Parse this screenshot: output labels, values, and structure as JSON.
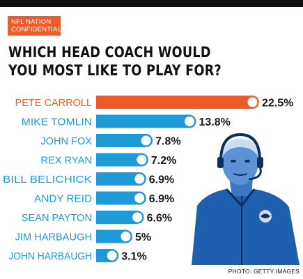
{
  "badge": {
    "line1": "NFL NATION",
    "line2": "CONFIDENTIAL"
  },
  "title": {
    "line1": "WHICH HEAD COACH WOULD",
    "line2": "YOU MOST LIKE TO PLAY FOR?"
  },
  "credit": "PHOTO: GETTY IMAGES",
  "colors": {
    "highlight": "#f05a28",
    "bar": "#1e9ad6",
    "label_highlight": "#f05a28",
    "label": "#1e9ad6",
    "value": "#1a1a1a",
    "photo": "#1f5fb0"
  },
  "chart_data": {
    "type": "bar",
    "orientation": "horizontal",
    "title": "WHICH HEAD COACH WOULD YOU MOST LIKE TO PLAY FOR?",
    "categories": [
      "PETE CARROLL",
      "MIKE TOMLIN",
      "JOHN FOX",
      "REX RYAN",
      "BILL BELICHICK",
      "ANDY REID",
      "SEAN PAYTON",
      "JIM HARBAUGH",
      "JOHN HARBAUGH"
    ],
    "values": [
      22.5,
      13.8,
      7.8,
      7.2,
      6.9,
      6.9,
      6.6,
      5,
      3.1
    ],
    "value_labels": [
      "22.5%",
      "13.8%",
      "7.8%",
      "7.2%",
      "6.9%",
      "6.9%",
      "6.6%",
      "5%",
      "3.1%"
    ],
    "highlight_index": 0,
    "xlim": [
      0,
      22.5
    ],
    "grid": false,
    "legend": "none"
  }
}
